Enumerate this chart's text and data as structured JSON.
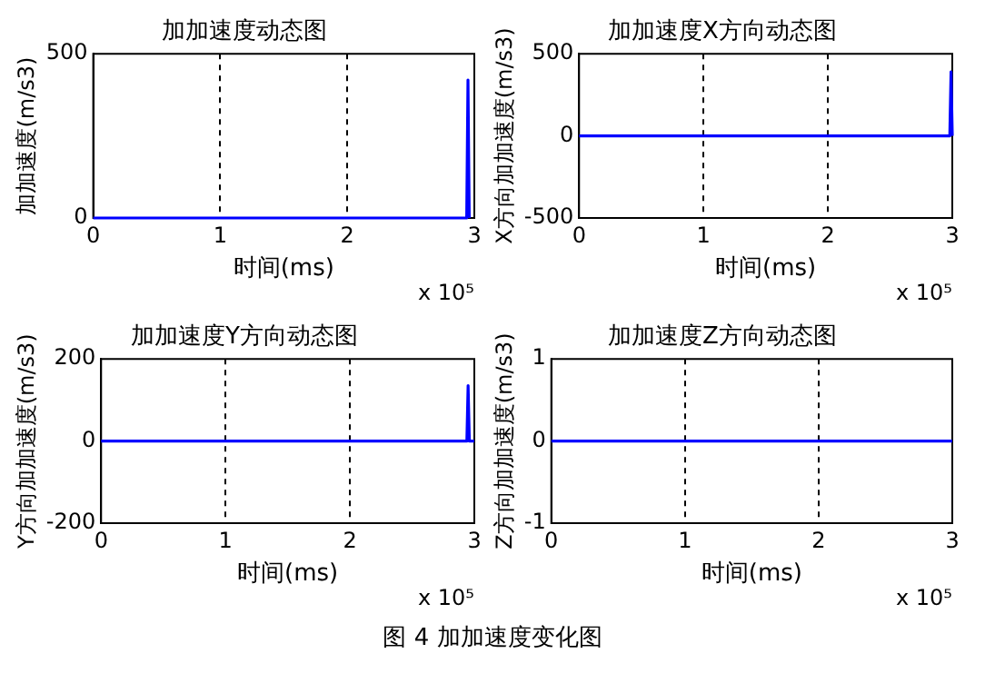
{
  "chart_data": [
    {
      "type": "line",
      "title": "加加速度动态图",
      "xlabel": "时间(ms)",
      "ylabel": "加加速度(m/s3)",
      "x": [
        0,
        2.94,
        2.95,
        2.96
      ],
      "series": [
        {
          "color": "#0000ff",
          "values": [
            0,
            0,
            420,
            0
          ]
        }
      ],
      "xlim": [
        0,
        3
      ],
      "xticks": [
        0,
        1,
        2,
        3
      ],
      "ylim": [
        0,
        500
      ],
      "yticks": [
        0,
        500
      ],
      "grid": "x",
      "legend": false,
      "marker": "none",
      "line_style": "solid",
      "annotations": [
        "x 10⁵"
      ]
    },
    {
      "type": "line",
      "title": "加加速度X方向动态图",
      "xlabel": "时间(ms)",
      "ylabel": "X方向加加速度(m/s3)",
      "x": [
        0,
        2.98,
        2.99,
        3
      ],
      "series": [
        {
          "color": "#0000ff",
          "values": [
            0,
            0,
            390,
            0
          ]
        }
      ],
      "xlim": [
        0,
        3
      ],
      "xticks": [
        0,
        1,
        2,
        3
      ],
      "ylim": [
        -500,
        500
      ],
      "yticks": [
        -500,
        0,
        500
      ],
      "grid": "x",
      "legend": false,
      "marker": "none",
      "line_style": "solid",
      "annotations": [
        "x 10⁵"
      ]
    },
    {
      "type": "line",
      "title": "加加速度Y方向动态图",
      "xlabel": "时间(ms)",
      "ylabel": "Y方向加加速度(m/s3)",
      "x": [
        0,
        2.94,
        2.95,
        2.96,
        3
      ],
      "series": [
        {
          "color": "#0000ff",
          "values": [
            0,
            0,
            135,
            0,
            0
          ]
        }
      ],
      "xlim": [
        0,
        3
      ],
      "xticks": [
        0,
        1,
        2,
        3
      ],
      "ylim": [
        -200,
        200
      ],
      "yticks": [
        -200,
        0,
        200
      ],
      "grid": "x",
      "legend": false,
      "marker": "none",
      "line_style": "solid",
      "annotations": [
        "x 10⁵"
      ]
    },
    {
      "type": "line",
      "title": "加加速度Z方向动态图",
      "xlabel": "时间(ms)",
      "ylabel": "Z方向加加速度(m/s3)",
      "x": [
        0,
        3
      ],
      "series": [
        {
          "color": "#0000ff",
          "values": [
            0,
            0
          ]
        }
      ],
      "xlim": [
        0,
        3
      ],
      "xticks": [
        0,
        1,
        2,
        3
      ],
      "ylim": [
        -1,
        1
      ],
      "yticks": [
        -1,
        0,
        1
      ],
      "grid": "x",
      "legend": false,
      "marker": "none",
      "line_style": "solid",
      "annotations": [
        "x 10⁵",
        "图 4  加加速度变化图"
      ]
    }
  ]
}
